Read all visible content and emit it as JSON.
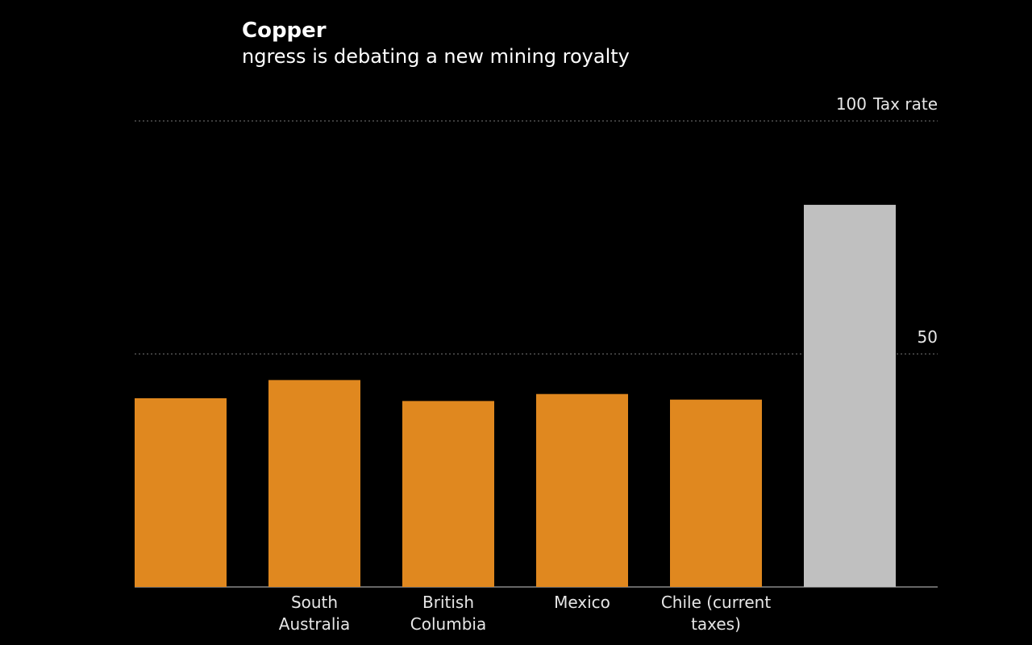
{
  "chart_data": {
    "type": "bar",
    "title": "Copper",
    "subtitle": "ngress is debating a new mining royalty",
    "ylabel": "Tax rate",
    "categories": [
      null,
      "South Australia",
      "British Columbia",
      "Mexico",
      "Chile (current taxes)",
      null
    ],
    "values": [
      40.5,
      44.4,
      39.9,
      41.4,
      40.2,
      82
    ],
    "colors": [
      "#e0881f",
      "#e0881f",
      "#e0881f",
      "#e0881f",
      "#e0881f",
      "#c0c0c0"
    ],
    "ylim": [
      0,
      100
    ],
    "yticks": [
      50,
      100
    ],
    "grid": true
  }
}
